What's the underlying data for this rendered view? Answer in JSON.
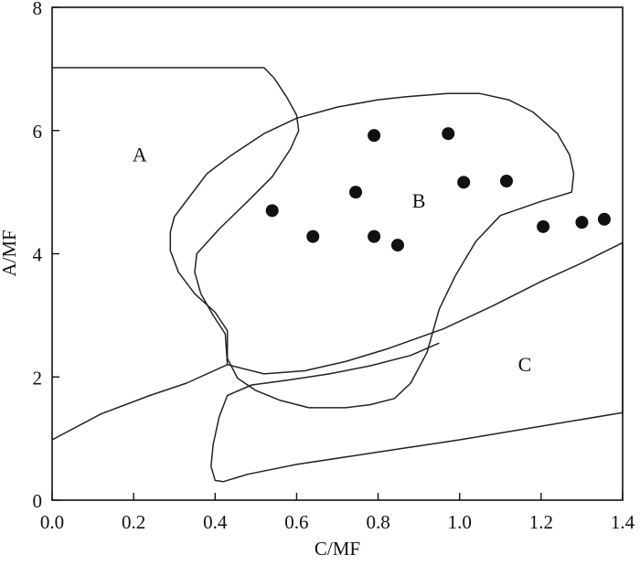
{
  "chart_data": {
    "type": "scatter",
    "title": "",
    "xlabel": "C/MF",
    "ylabel": "A/MF",
    "xlim": [
      0.0,
      1.4
    ],
    "ylim": [
      0,
      8
    ],
    "x_ticks": [
      "0.0",
      "0.2",
      "0.4",
      "0.6",
      "0.8",
      "1.0",
      "1.2",
      "1.4"
    ],
    "y_ticks": [
      "0",
      "2",
      "4",
      "6",
      "8"
    ],
    "grid": false,
    "series": [
      {
        "points": [
          {
            "x": 0.54,
            "y": 4.7
          },
          {
            "x": 0.64,
            "y": 4.28
          },
          {
            "x": 0.745,
            "y": 5.0
          },
          {
            "x": 0.79,
            "y": 5.92
          },
          {
            "x": 0.79,
            "y": 4.28
          },
          {
            "x": 0.848,
            "y": 4.14
          },
          {
            "x": 0.972,
            "y": 5.95
          },
          {
            "x": 1.01,
            "y": 5.16
          },
          {
            "x": 1.115,
            "y": 5.18
          },
          {
            "x": 1.205,
            "y": 4.44
          },
          {
            "x": 1.3,
            "y": 4.51
          },
          {
            "x": 1.355,
            "y": 4.56
          }
        ]
      }
    ],
    "regions": [
      {
        "label": "A",
        "label_pos": {
          "x": 0.215,
          "y": 5.6
        },
        "boundary": [
          [
            0.0,
            7.02
          ],
          [
            0.52,
            7.02
          ],
          [
            0.545,
            6.85
          ],
          [
            0.575,
            6.55
          ],
          [
            0.6,
            6.25
          ],
          [
            0.605,
            6.0
          ],
          [
            0.585,
            5.7
          ],
          [
            0.54,
            5.25
          ],
          [
            0.48,
            4.85
          ],
          [
            0.41,
            4.4
          ],
          [
            0.355,
            4.0
          ],
          [
            0.35,
            3.7
          ],
          [
            0.365,
            3.35
          ],
          [
            0.395,
            3.0
          ],
          [
            0.425,
            2.7
          ],
          [
            0.43,
            2.2
          ],
          [
            0.33,
            1.9
          ],
          [
            0.24,
            1.7
          ],
          [
            0.12,
            1.4
          ],
          [
            0.0,
            0.98
          ]
        ]
      },
      {
        "label": "B",
        "label_pos": {
          "x": 0.9,
          "y": 4.85
        },
        "boundary": [
          [
            0.8,
            6.5
          ],
          [
            0.87,
            6.55
          ],
          [
            0.97,
            6.6
          ],
          [
            1.05,
            6.6
          ],
          [
            1.12,
            6.5
          ],
          [
            1.18,
            6.3
          ],
          [
            1.24,
            5.95
          ],
          [
            1.27,
            5.6
          ],
          [
            1.28,
            5.3
          ],
          [
            1.275,
            5.0
          ],
          [
            1.2,
            4.85
          ],
          [
            1.1,
            4.62
          ],
          [
            1.04,
            4.2
          ],
          [
            0.99,
            3.65
          ],
          [
            0.95,
            3.1
          ],
          [
            0.92,
            2.4
          ],
          [
            0.88,
            1.9
          ],
          [
            0.84,
            1.65
          ],
          [
            0.78,
            1.55
          ],
          [
            0.72,
            1.5
          ],
          [
            0.63,
            1.5
          ],
          [
            0.56,
            1.62
          ],
          [
            0.5,
            1.78
          ],
          [
            0.455,
            1.98
          ],
          [
            0.43,
            2.3
          ],
          [
            0.43,
            2.75
          ],
          [
            0.4,
            3.05
          ],
          [
            0.35,
            3.35
          ],
          [
            0.31,
            3.7
          ],
          [
            0.29,
            4.05
          ],
          [
            0.29,
            4.35
          ],
          [
            0.3,
            4.6
          ],
          [
            0.34,
            4.95
          ],
          [
            0.38,
            5.3
          ],
          [
            0.44,
            5.6
          ],
          [
            0.52,
            5.95
          ],
          [
            0.6,
            6.2
          ],
          [
            0.7,
            6.38
          ],
          [
            0.8,
            6.5
          ]
        ]
      },
      {
        "label": "C",
        "label_pos": {
          "x": 1.16,
          "y": 2.2
        },
        "boundary": [
          [
            0.43,
            2.2
          ],
          [
            0.52,
            2.05
          ],
          [
            0.62,
            2.1
          ],
          [
            0.72,
            2.25
          ],
          [
            0.82,
            2.45
          ],
          [
            0.96,
            2.78
          ],
          [
            1.08,
            3.15
          ],
          [
            1.2,
            3.55
          ],
          [
            1.3,
            3.85
          ],
          [
            1.4,
            4.18
          ],
          [
            1.4,
            1.42
          ],
          [
            1.2,
            1.2
          ],
          [
            1.0,
            0.98
          ],
          [
            0.8,
            0.78
          ],
          [
            0.6,
            0.58
          ],
          [
            0.48,
            0.42
          ],
          [
            0.42,
            0.3
          ],
          [
            0.4,
            0.32
          ],
          [
            0.39,
            0.55
          ],
          [
            0.395,
            0.9
          ],
          [
            0.41,
            1.35
          ],
          [
            0.43,
            1.7
          ],
          [
            0.49,
            1.87
          ],
          [
            0.58,
            1.95
          ],
          [
            0.68,
            2.05
          ],
          [
            0.78,
            2.18
          ],
          [
            0.88,
            2.35
          ],
          [
            0.95,
            2.55
          ]
        ]
      }
    ]
  }
}
